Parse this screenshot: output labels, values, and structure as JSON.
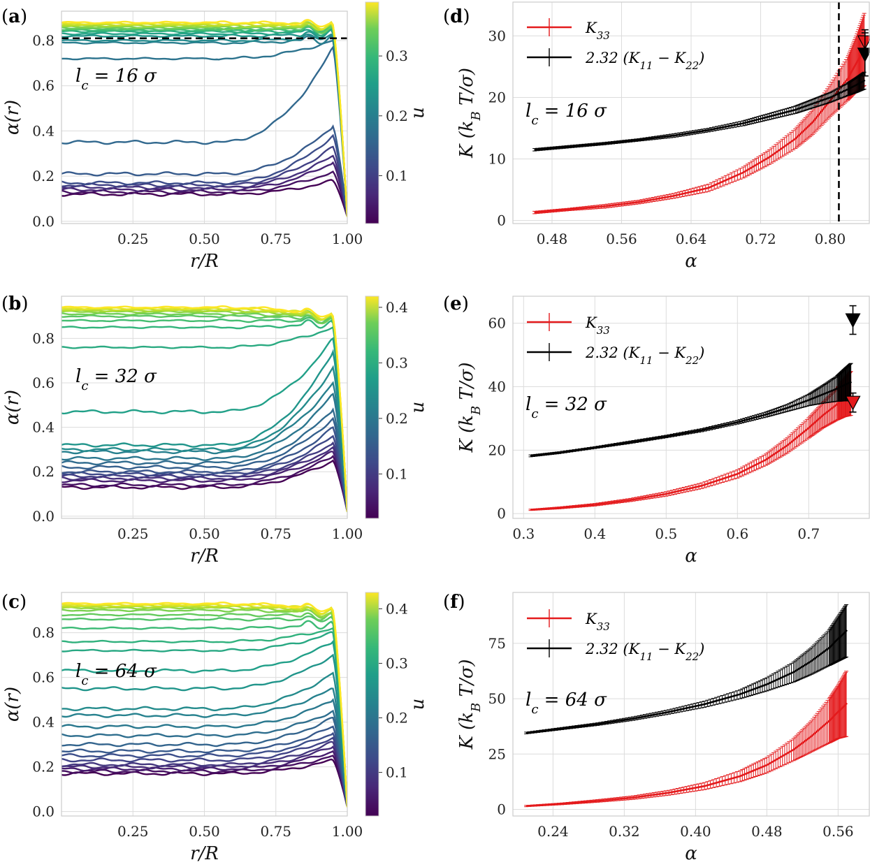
{
  "figure": {
    "panel_count": 6
  },
  "chart_data": [
    {
      "id": "a",
      "type": "line",
      "panel_label": "(a)",
      "annotation": "l_c = 16 σ",
      "ann_main": "l",
      "ann_sub": "c",
      "ann_rest": " = 16 σ",
      "xlabel": "r/R",
      "ylabel": "α(r)",
      "colorbar_label": "u",
      "xlim": [
        0.0,
        1.0
      ],
      "ylim": [
        -0.01,
        0.93
      ],
      "xticks": [
        0.25,
        0.5,
        0.75,
        1.0
      ],
      "xtick_labels": [
        "0.25",
        "0.50",
        "0.75",
        "1.00"
      ],
      "yticks": [
        0.0,
        0.2,
        0.4,
        0.6,
        0.8
      ],
      "ytick_labels": [
        "0.0",
        "0.2",
        "0.4",
        "0.6",
        "0.8"
      ],
      "colorbar_range": [
        0.02,
        0.39
      ],
      "colorbar_ticks": [
        0.1,
        0.2,
        0.3
      ],
      "colorbar_tick_labels": [
        "0.1",
        "0.2",
        "0.3"
      ],
      "hline": 0.81,
      "n_curves": 22,
      "curve_plateaus": [
        0.88,
        0.875,
        0.87,
        0.865,
        0.86,
        0.855,
        0.85,
        0.845,
        0.84,
        0.83,
        0.82,
        0.8,
        0.79,
        0.72,
        0.35,
        0.21,
        0.17,
        0.16,
        0.15,
        0.14,
        0.13,
        0.12
      ],
      "curve_peaks": [
        0.87,
        0.87,
        0.86,
        0.86,
        0.86,
        0.85,
        0.85,
        0.85,
        0.84,
        0.84,
        0.83,
        0.82,
        0.81,
        0.8,
        0.77,
        0.42,
        0.38,
        0.33,
        0.29,
        0.26,
        0.22,
        0.18
      ]
    },
    {
      "id": "b",
      "type": "line",
      "panel_label": "(b)",
      "annotation": "l_c = 32 σ",
      "ann_main": "l",
      "ann_sub": "c",
      "ann_rest": " = 32 σ",
      "xlabel": "r/R",
      "ylabel": "α(r)",
      "colorbar_label": "u",
      "xlim": [
        0.0,
        1.0
      ],
      "ylim": [
        -0.01,
        0.99
      ],
      "xticks": [
        0.25,
        0.5,
        0.75,
        1.0
      ],
      "xtick_labels": [
        "0.25",
        "0.50",
        "0.75",
        "1.00"
      ],
      "yticks": [
        0.0,
        0.2,
        0.4,
        0.6,
        0.8
      ],
      "ytick_labels": [
        "0.0",
        "0.2",
        "0.4",
        "0.6",
        "0.8"
      ],
      "colorbar_range": [
        0.02,
        0.42
      ],
      "colorbar_ticks": [
        0.1,
        0.2,
        0.3,
        0.4
      ],
      "colorbar_tick_labels": [
        "0.1",
        "0.2",
        "0.3",
        "0.4"
      ],
      "n_curves": 24,
      "curve_plateaus": [
        0.94,
        0.935,
        0.93,
        0.925,
        0.92,
        0.91,
        0.9,
        0.88,
        0.85,
        0.76,
        0.47,
        0.32,
        0.3,
        0.29,
        0.26,
        0.24,
        0.22,
        0.2,
        0.19,
        0.18,
        0.17,
        0.16,
        0.14,
        0.13
      ],
      "curve_peaks": [
        0.9,
        0.9,
        0.89,
        0.89,
        0.89,
        0.88,
        0.88,
        0.88,
        0.87,
        0.85,
        0.8,
        0.74,
        0.67,
        0.6,
        0.55,
        0.48,
        0.44,
        0.4,
        0.36,
        0.33,
        0.31,
        0.29,
        0.27,
        0.25
      ]
    },
    {
      "id": "c",
      "type": "line",
      "panel_label": "(c)",
      "annotation": "l_c = 64 σ",
      "ann_main": "l",
      "ann_sub": "c",
      "ann_rest": " = 64 σ",
      "xlabel": "r/R",
      "ylabel": "α(r)",
      "colorbar_label": "u",
      "xlim": [
        0.0,
        1.0
      ],
      "ylim": [
        -0.02,
        0.98
      ],
      "xticks": [
        0.25,
        0.5,
        0.75,
        1.0
      ],
      "xtick_labels": [
        "0.25",
        "0.50",
        "0.75",
        "1.00"
      ],
      "yticks": [
        0.0,
        0.2,
        0.4,
        0.6,
        0.8
      ],
      "ytick_labels": [
        "0.0",
        "0.2",
        "0.4",
        "0.6",
        "0.8"
      ],
      "colorbar_range": [
        0.02,
        0.43
      ],
      "colorbar_ticks": [
        0.1,
        0.2,
        0.3,
        0.4
      ],
      "colorbar_tick_labels": [
        "0.1",
        "0.2",
        "0.3",
        "0.4"
      ],
      "n_curves": 26,
      "curve_plateaus": [
        0.93,
        0.925,
        0.92,
        0.915,
        0.91,
        0.9,
        0.88,
        0.86,
        0.82,
        0.76,
        0.72,
        0.63,
        0.55,
        0.46,
        0.43,
        0.38,
        0.34,
        0.3,
        0.27,
        0.25,
        0.23,
        0.21,
        0.2,
        0.19,
        0.18,
        0.17
      ],
      "curve_peaks": [
        0.9,
        0.9,
        0.89,
        0.89,
        0.88,
        0.88,
        0.87,
        0.86,
        0.84,
        0.82,
        0.8,
        0.76,
        0.7,
        0.62,
        0.55,
        0.5,
        0.45,
        0.42,
        0.38,
        0.35,
        0.33,
        0.31,
        0.29,
        0.27,
        0.25,
        0.23
      ]
    },
    {
      "id": "d",
      "type": "line",
      "panel_label": "(d)",
      "annotation": "l_c = 16 σ",
      "ann_main": "l",
      "ann_sub": "c",
      "ann_rest": " = 16 σ",
      "xlabel": "α",
      "ylabel": "K (k_B T/σ)",
      "xlim": [
        0.435,
        0.845
      ],
      "ylim": [
        -0.5,
        35.5
      ],
      "xticks": [
        0.48,
        0.56,
        0.64,
        0.72,
        0.8
      ],
      "xtick_labels": [
        "0.48",
        "0.56",
        "0.64",
        "0.72",
        "0.80"
      ],
      "yticks": [
        0,
        10,
        20,
        30
      ],
      "ytick_labels": [
        "0",
        "10",
        "20",
        "30"
      ],
      "vline": 0.81,
      "legend": [
        "K_33",
        "2.32 (K_11 − K_22)"
      ],
      "legend_labels": {
        "red_main": "K",
        "red_sub": "33",
        "black_text": "2.32 (K",
        "black_sub1": "11",
        "black_mid": " − K",
        "black_sub2": "22",
        "black_end": ")"
      },
      "series": [
        {
          "name": "K_33",
          "color": "#e41a1c",
          "x": [
            0.46,
            0.5,
            0.54,
            0.58,
            0.62,
            0.66,
            0.7,
            0.73,
            0.76,
            0.78,
            0.8,
            0.82,
            0.83,
            0.84
          ],
          "y": [
            1.3,
            1.8,
            2.3,
            3.0,
            4.0,
            5.3,
            7.8,
            10.3,
            13.3,
            16.0,
            19.5,
            23.0,
            25.5,
            28.0
          ],
          "err": [
            0.2,
            0.2,
            0.3,
            0.3,
            0.4,
            0.6,
            0.9,
            1.2,
            1.6,
            2.0,
            2.6,
            3.5,
            4.5,
            6.0
          ]
        },
        {
          "name": "2.32 (K_11 − K_22)",
          "color": "#000000",
          "x": [
            0.46,
            0.5,
            0.54,
            0.58,
            0.62,
            0.66,
            0.7,
            0.73,
            0.76,
            0.78,
            0.8,
            0.82,
            0.83,
            0.84
          ],
          "y": [
            11.5,
            12.0,
            12.5,
            13.1,
            13.8,
            14.7,
            15.8,
            16.9,
            18.0,
            19.0,
            20.0,
            21.3,
            22.0,
            22.8
          ],
          "err": [
            0.2,
            0.2,
            0.2,
            0.2,
            0.3,
            0.3,
            0.4,
            0.5,
            0.6,
            0.7,
            0.8,
            1.0,
            1.2,
            1.4
          ]
        }
      ],
      "markers": [
        {
          "series": "K_33",
          "x": 0.84,
          "y": 29.0,
          "err": 2.0
        },
        {
          "series": "2.32 (K_11 − K_22)",
          "x": 0.84,
          "y": 27.0,
          "err": 3.5
        }
      ]
    },
    {
      "id": "e",
      "type": "line",
      "panel_label": "(e)",
      "annotation": "l_c = 32 σ",
      "ann_main": "l",
      "ann_sub": "c",
      "ann_rest": " = 32 σ",
      "xlabel": "α",
      "ylabel": "K (k_B T/σ)",
      "xlim": [
        0.285,
        0.785
      ],
      "ylim": [
        -1.5,
        68.5
      ],
      "xticks": [
        0.3,
        0.4,
        0.5,
        0.6,
        0.7
      ],
      "xtick_labels": [
        "0.3",
        "0.4",
        "0.5",
        "0.6",
        "0.7"
      ],
      "yticks": [
        0,
        20,
        40,
        60
      ],
      "ytick_labels": [
        "0",
        "20",
        "40",
        "60"
      ],
      "legend": [
        "K_33",
        "2.32 (K_11 − K_22)"
      ],
      "legend_labels": {
        "red_main": "K",
        "red_sub": "33",
        "black_text": "2.32 (K",
        "black_sub1": "11",
        "black_mid": " − K",
        "black_sub2": "22",
        "black_end": ")"
      },
      "series": [
        {
          "name": "K_33",
          "color": "#e41a1c",
          "x": [
            0.31,
            0.35,
            0.4,
            0.45,
            0.5,
            0.55,
            0.6,
            0.64,
            0.67,
            0.7,
            0.72,
            0.74,
            0.75,
            0.76
          ],
          "y": [
            1.2,
            1.8,
            2.8,
            4.3,
            6.2,
            8.8,
            12.5,
            17.0,
            21.5,
            27.0,
            31.0,
            34.5,
            36.5,
            38.0
          ],
          "err": [
            0.2,
            0.3,
            0.4,
            0.5,
            0.7,
            0.9,
            1.3,
            1.8,
            2.4,
            3.2,
            4.0,
            5.0,
            6.0,
            7.0
          ]
        },
        {
          "name": "2.32 (K_11 − K_22)",
          "color": "#000000",
          "x": [
            0.31,
            0.35,
            0.4,
            0.45,
            0.5,
            0.55,
            0.6,
            0.64,
            0.67,
            0.7,
            0.72,
            0.74,
            0.75,
            0.76
          ],
          "y": [
            18.2,
            19.2,
            20.8,
            22.5,
            24.3,
            26.3,
            28.8,
            31.2,
            33.3,
            35.8,
            37.6,
            39.4,
            40.5,
            41.5
          ],
          "err": [
            0.3,
            0.3,
            0.3,
            0.4,
            0.4,
            0.5,
            0.6,
            0.8,
            1.1,
            1.8,
            2.8,
            4.0,
            5.0,
            6.0
          ]
        }
      ],
      "markers": [
        {
          "series": "2.32 (K_11 − K_22)",
          "x": 0.762,
          "y": 61.0,
          "err": 4.5
        },
        {
          "series": "K_33",
          "x": 0.762,
          "y": 35.0,
          "err": 3.0
        }
      ]
    },
    {
      "id": "f",
      "type": "line",
      "panel_label": "(f)",
      "annotation": "l_c = 64 σ",
      "ann_main": "l",
      "ann_sub": "c",
      "ann_rest": " = 64 σ",
      "xlabel": "α",
      "ylabel": "K (k_B T/σ)",
      "xlim": [
        0.195,
        0.595
      ],
      "ylim": [
        -3.0,
        98.0
      ],
      "xticks": [
        0.24,
        0.32,
        0.4,
        0.48,
        0.56
      ],
      "xtick_labels": [
        "0.24",
        "0.32",
        "0.40",
        "0.48",
        "0.56"
      ],
      "yticks": [
        0,
        25,
        50,
        75
      ],
      "ytick_labels": [
        "0",
        "25",
        "50",
        "75"
      ],
      "legend": [
        "K_33",
        "2.32 (K_11 − K_22)"
      ],
      "legend_labels": {
        "red_main": "K",
        "red_sub": "33",
        "black_text": "2.32 (K",
        "black_sub1": "11",
        "black_mid": " − K",
        "black_sub2": "22",
        "black_end": ")"
      },
      "series": [
        {
          "name": "K_33",
          "color": "#e41a1c",
          "x": [
            0.21,
            0.25,
            0.29,
            0.33,
            0.37,
            0.41,
            0.45,
            0.48,
            0.51,
            0.53,
            0.55,
            0.56,
            0.57
          ],
          "y": [
            1.5,
            2.5,
            3.8,
            5.3,
            7.5,
            10.5,
            15.0,
            20.0,
            27.0,
            33.0,
            40.0,
            44.0,
            48.0
          ],
          "err": [
            0.3,
            0.4,
            0.6,
            0.8,
            1.1,
            1.6,
            2.5,
            3.5,
            5.0,
            7.0,
            10.0,
            12.0,
            15.0
          ]
        },
        {
          "name": "2.32 (K_11 − K_22)",
          "color": "#000000",
          "x": [
            0.21,
            0.25,
            0.29,
            0.33,
            0.37,
            0.41,
            0.45,
            0.48,
            0.51,
            0.53,
            0.55,
            0.56,
            0.57
          ],
          "y": [
            34.5,
            36.5,
            38.5,
            41.0,
            44.0,
            47.5,
            52.0,
            56.5,
            62.0,
            67.0,
            73.0,
            77.0,
            81.0
          ],
          "err": [
            0.4,
            0.5,
            0.6,
            0.8,
            1.0,
            1.4,
            2.0,
            3.0,
            4.5,
            6.0,
            8.0,
            10.0,
            12.0
          ]
        }
      ]
    }
  ]
}
